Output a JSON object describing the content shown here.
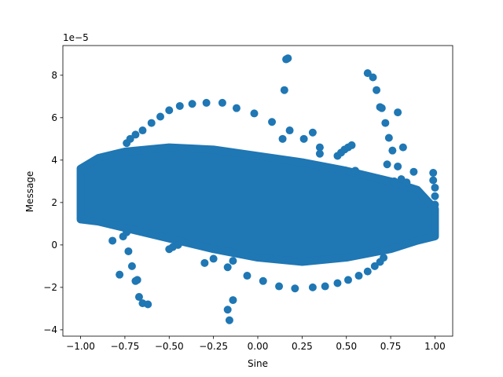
{
  "chart_data": {
    "type": "scatter",
    "title": "",
    "xlabel": "Sine",
    "ylabel": "Message",
    "y_offset_label": "1e−5",
    "y_scale": 1e-05,
    "xlim": [
      -1.1,
      1.1
    ],
    "ylim": [
      -4.3,
      9.4
    ],
    "x_ticks": [
      -1.0,
      -0.75,
      -0.5,
      -0.25,
      0.0,
      0.25,
      0.5,
      0.75,
      1.0
    ],
    "x_tick_labels": [
      "−1.00",
      "−0.75",
      "−0.50",
      "−0.25",
      "0.00",
      "0.25",
      "0.50",
      "0.75",
      "1.00"
    ],
    "y_ticks": [
      -4,
      -2,
      0,
      2,
      4,
      6,
      8
    ],
    "y_tick_labels": [
      "−4",
      "−2",
      "0",
      "2",
      "4",
      "6",
      "8"
    ],
    "grid": false,
    "legend": "none",
    "color": "#1f77b4",
    "series": [
      {
        "dense_band": {
          "upper": [
            [
              -1.0,
              3.6
            ],
            [
              -0.9,
              4.1
            ],
            [
              -0.75,
              4.4
            ],
            [
              -0.5,
              4.6
            ],
            [
              -0.25,
              4.5
            ],
            [
              0.0,
              4.2
            ],
            [
              0.25,
              3.9
            ],
            [
              0.5,
              3.5
            ],
            [
              0.75,
              3.0
            ],
            [
              0.9,
              2.6
            ],
            [
              1.0,
              1.7
            ]
          ],
          "lower": [
            [
              -1.0,
              1.2
            ],
            [
              -0.9,
              1.1
            ],
            [
              -0.75,
              0.8
            ],
            [
              -0.5,
              0.3
            ],
            [
              -0.25,
              -0.2
            ],
            [
              0.0,
              -0.6
            ],
            [
              0.25,
              -0.8
            ],
            [
              0.5,
              -0.6
            ],
            [
              0.75,
              -0.2
            ],
            [
              0.9,
              0.2
            ],
            [
              1.0,
              0.4
            ]
          ]
        },
        "points": [
          [
            -0.82,
            0.2
          ],
          [
            -0.78,
            -1.4
          ],
          [
            -0.76,
            0.4
          ],
          [
            -0.74,
            0.6
          ],
          [
            -0.73,
            -0.3
          ],
          [
            -0.71,
            -1.0
          ],
          [
            -0.69,
            -1.7
          ],
          [
            -0.68,
            -1.65
          ],
          [
            -0.67,
            -2.45
          ],
          [
            -0.65,
            -2.75
          ],
          [
            -0.62,
            -2.8
          ],
          [
            -0.74,
            4.8
          ],
          [
            -0.72,
            5.0
          ],
          [
            -0.69,
            5.2
          ],
          [
            -0.65,
            5.4
          ],
          [
            -0.6,
            5.75
          ],
          [
            -0.55,
            6.05
          ],
          [
            -0.5,
            6.35
          ],
          [
            -0.44,
            6.55
          ],
          [
            -0.37,
            6.65
          ],
          [
            -0.29,
            6.7
          ],
          [
            -0.2,
            6.7
          ],
          [
            -0.12,
            6.45
          ],
          [
            -0.02,
            6.2
          ],
          [
            0.08,
            5.8
          ],
          [
            0.14,
            5.0
          ],
          [
            0.15,
            7.3
          ],
          [
            0.16,
            8.75
          ],
          [
            0.17,
            8.8
          ],
          [
            0.18,
            5.4
          ],
          [
            0.26,
            5.0
          ],
          [
            0.31,
            5.3
          ],
          [
            0.35,
            4.6
          ],
          [
            0.35,
            4.3
          ],
          [
            0.45,
            4.2
          ],
          [
            0.47,
            4.35
          ],
          [
            0.49,
            4.5
          ],
          [
            0.51,
            4.6
          ],
          [
            0.53,
            4.7
          ],
          [
            0.55,
            3.5
          ],
          [
            0.62,
            8.1
          ],
          [
            0.65,
            7.9
          ],
          [
            0.67,
            7.3
          ],
          [
            0.69,
            6.5
          ],
          [
            0.7,
            6.45
          ],
          [
            0.72,
            5.75
          ],
          [
            0.74,
            5.05
          ],
          [
            0.76,
            4.45
          ],
          [
            0.79,
            6.25
          ],
          [
            0.82,
            4.6
          ],
          [
            0.73,
            3.8
          ],
          [
            0.79,
            3.7
          ],
          [
            0.81,
            3.1
          ],
          [
            0.84,
            2.95
          ],
          [
            0.88,
            3.45
          ],
          [
            0.77,
            3.0
          ],
          [
            0.99,
            3.4
          ],
          [
            0.99,
            3.05
          ],
          [
            1.0,
            2.7
          ],
          [
            1.0,
            2.3
          ],
          [
            1.0,
            1.9
          ],
          [
            -0.5,
            -0.2
          ],
          [
            -0.48,
            -0.1
          ],
          [
            -0.45,
            0.0
          ],
          [
            -0.3,
            -0.85
          ],
          [
            -0.25,
            -0.65
          ],
          [
            -0.17,
            -1.05
          ],
          [
            -0.14,
            -0.75
          ],
          [
            -0.06,
            -1.45
          ],
          [
            0.03,
            -1.7
          ],
          [
            0.12,
            -1.95
          ],
          [
            0.21,
            -2.05
          ],
          [
            0.31,
            -2.0
          ],
          [
            0.38,
            -1.95
          ],
          [
            0.45,
            -1.8
          ],
          [
            0.51,
            -1.65
          ],
          [
            0.57,
            -1.45
          ],
          [
            0.62,
            -1.25
          ],
          [
            0.66,
            -1.0
          ],
          [
            0.69,
            -0.8
          ],
          [
            0.71,
            -0.6
          ],
          [
            -0.17,
            -3.05
          ],
          [
            -0.16,
            -3.55
          ],
          [
            -0.14,
            -2.6
          ]
        ]
      }
    ]
  }
}
